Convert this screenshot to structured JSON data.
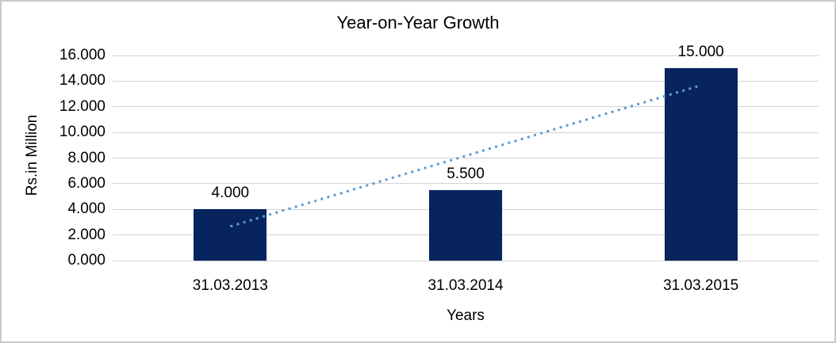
{
  "chart_data": {
    "type": "bar",
    "title": "Year-on-Year Growth",
    "xlabel": "Years",
    "ylabel": "Rs.in Million",
    "categories": [
      "31.03.2013",
      "31.03.2014",
      "31.03.2015"
    ],
    "values": [
      4.0,
      5.5,
      15.0
    ],
    "data_labels": [
      "4.000",
      "5.500",
      "15.000"
    ],
    "ylim": [
      0,
      16
    ],
    "ytick_step": 2,
    "ytick_labels": [
      "0.000",
      "2.000",
      "4.000",
      "6.000",
      "8.000",
      "10.000",
      "12.000",
      "14.000",
      "16.000"
    ],
    "grid": true,
    "legend": "none",
    "bar_color": "#08245E",
    "trendline": {
      "type": "linear",
      "style": "dotted",
      "color": "#5B9BD5",
      "start_value": 2.67,
      "end_value": 13.67
    }
  },
  "colors": {
    "background": "#FFFFFF",
    "border": "#C9C9C9",
    "gridline": "#D3D3D3",
    "text": "#000000"
  }
}
